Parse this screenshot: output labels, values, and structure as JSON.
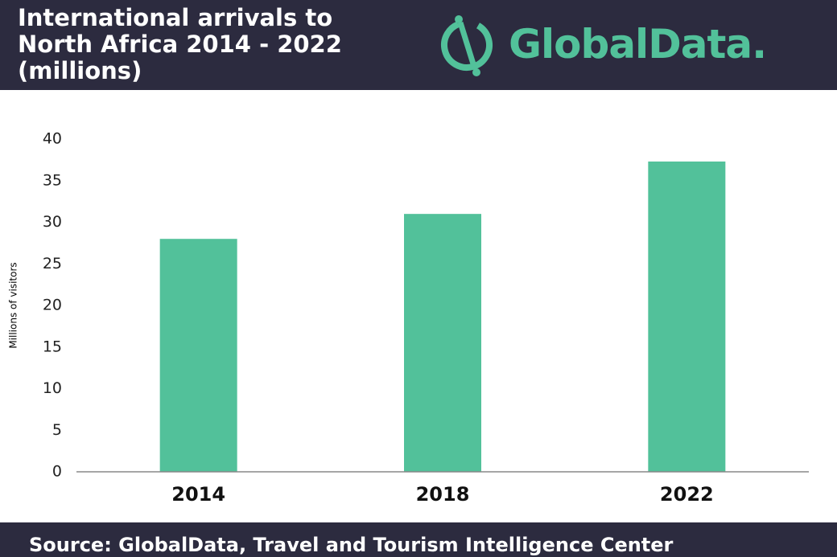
{
  "chart_data": {
    "type": "bar",
    "title": "International arrivals to North Africa 2014 - 2022 (millions)",
    "logo": "GlobalData.",
    "y_label": "Millions of visitors",
    "categories": [
      "2014",
      "2018",
      "2022"
    ],
    "values": [
      28,
      31,
      37.3
    ],
    "color": "#52c19a",
    "ylim": [
      0,
      40
    ],
    "yticks": [
      0,
      5,
      10,
      15,
      20,
      25,
      30,
      35,
      40
    ],
    "grid": false,
    "source": "Source:  GlobalData, Travel and Tourism Intelligence Center"
  }
}
